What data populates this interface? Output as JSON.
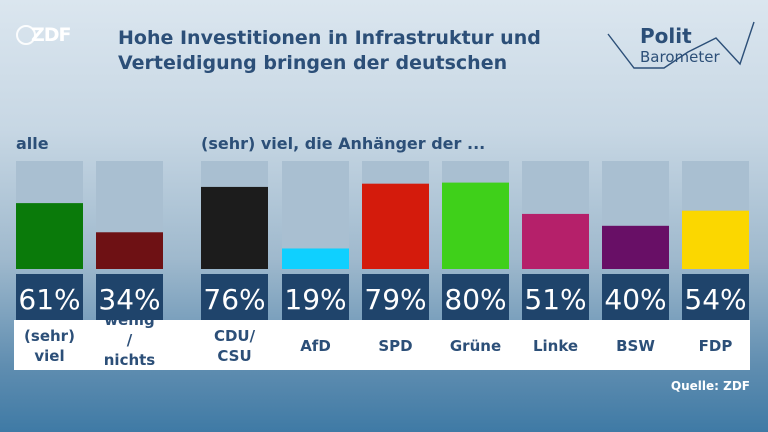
{
  "header": {
    "logo_text": "ZDF",
    "title_line1": "Hohe Investitionen in Infrastruktur und",
    "title_line2": "Verteidigung bringen der deutschen",
    "brand_top": "Polit",
    "brand_bottom": "Barometer"
  },
  "labels": {
    "all": "alle",
    "supporters": "(sehr) viel, die Anhänger der ..."
  },
  "source": "Quelle: ZDF",
  "colors": {
    "title": "#2c4f78",
    "bar_background": "#a9bfd1",
    "value_box": "#1f446b"
  },
  "chart_data": {
    "type": "bar",
    "ylim": [
      0,
      100
    ],
    "categories": [
      "(sehr) viel",
      "wenig / nichts",
      "CDU/CSU",
      "AfD",
      "SPD",
      "Grüne",
      "Linke",
      "BSW",
      "FDP"
    ],
    "value_labels": [
      "61%",
      "34%",
      "76%",
      "19%",
      "79%",
      "80%",
      "51%",
      "40%",
      "54%"
    ],
    "values": [
      61,
      34,
      76,
      19,
      79,
      80,
      51,
      40,
      54
    ],
    "colors": [
      "#0a7a0a",
      "#6e1114",
      "#1c1c1c",
      "#0fd0ff",
      "#d41b0c",
      "#3fd01a",
      "#b5206a",
      "#680f66",
      "#fbd700"
    ]
  }
}
